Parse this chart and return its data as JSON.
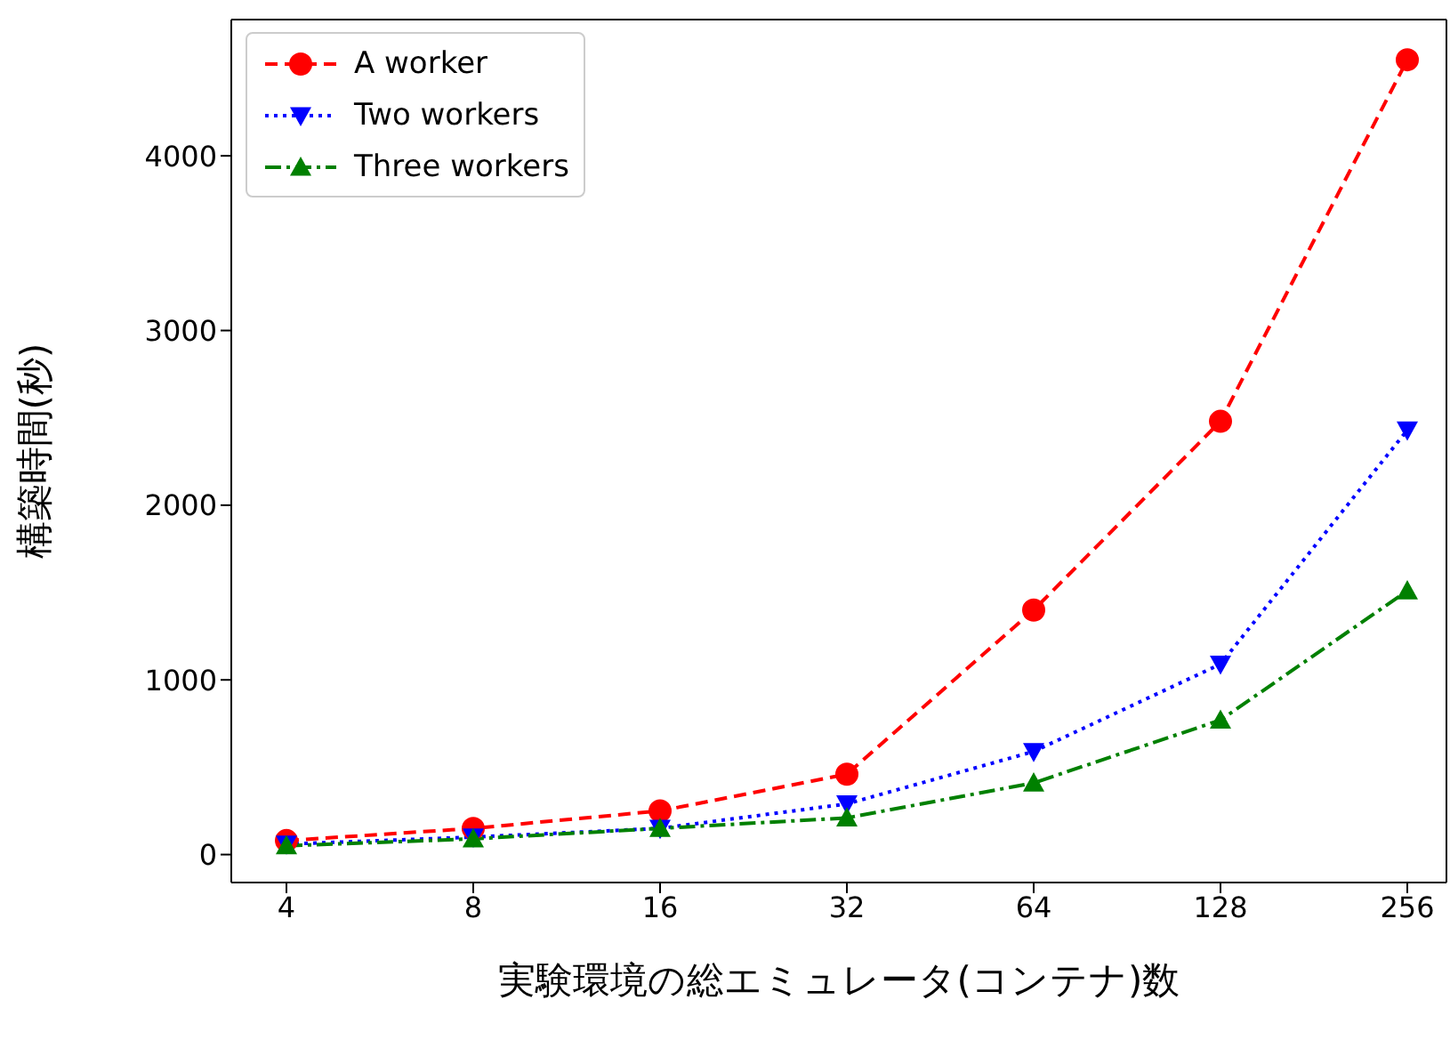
{
  "chart_data": {
    "type": "line",
    "xlabel": "実験環境の総エミュレータ(コンテナ)数",
    "ylabel": "構築時間(秒)",
    "categories": [
      "4",
      "8",
      "16",
      "32",
      "64",
      "128",
      "256"
    ],
    "series": [
      {
        "name": "A worker",
        "color": "#ff0000",
        "marker": "circle",
        "line_style": "dashed",
        "values": [
          80,
          150,
          250,
          460,
          1400,
          2480,
          4550
        ]
      },
      {
        "name": "Two workers",
        "color": "#0000ff",
        "marker": "triangle-down",
        "line_style": "dotted",
        "values": [
          60,
          100,
          150,
          290,
          590,
          1090,
          2430
        ]
      },
      {
        "name": "Three workers",
        "color": "#008000",
        "marker": "triangle",
        "line_style": "dashdot",
        "values": [
          50,
          90,
          150,
          210,
          410,
          770,
          1510
        ]
      }
    ],
    "ylim": [
      -160,
      4780
    ],
    "yticks": [
      0,
      1000,
      2000,
      3000,
      4000
    ],
    "legend": "top left",
    "grid": false
  }
}
